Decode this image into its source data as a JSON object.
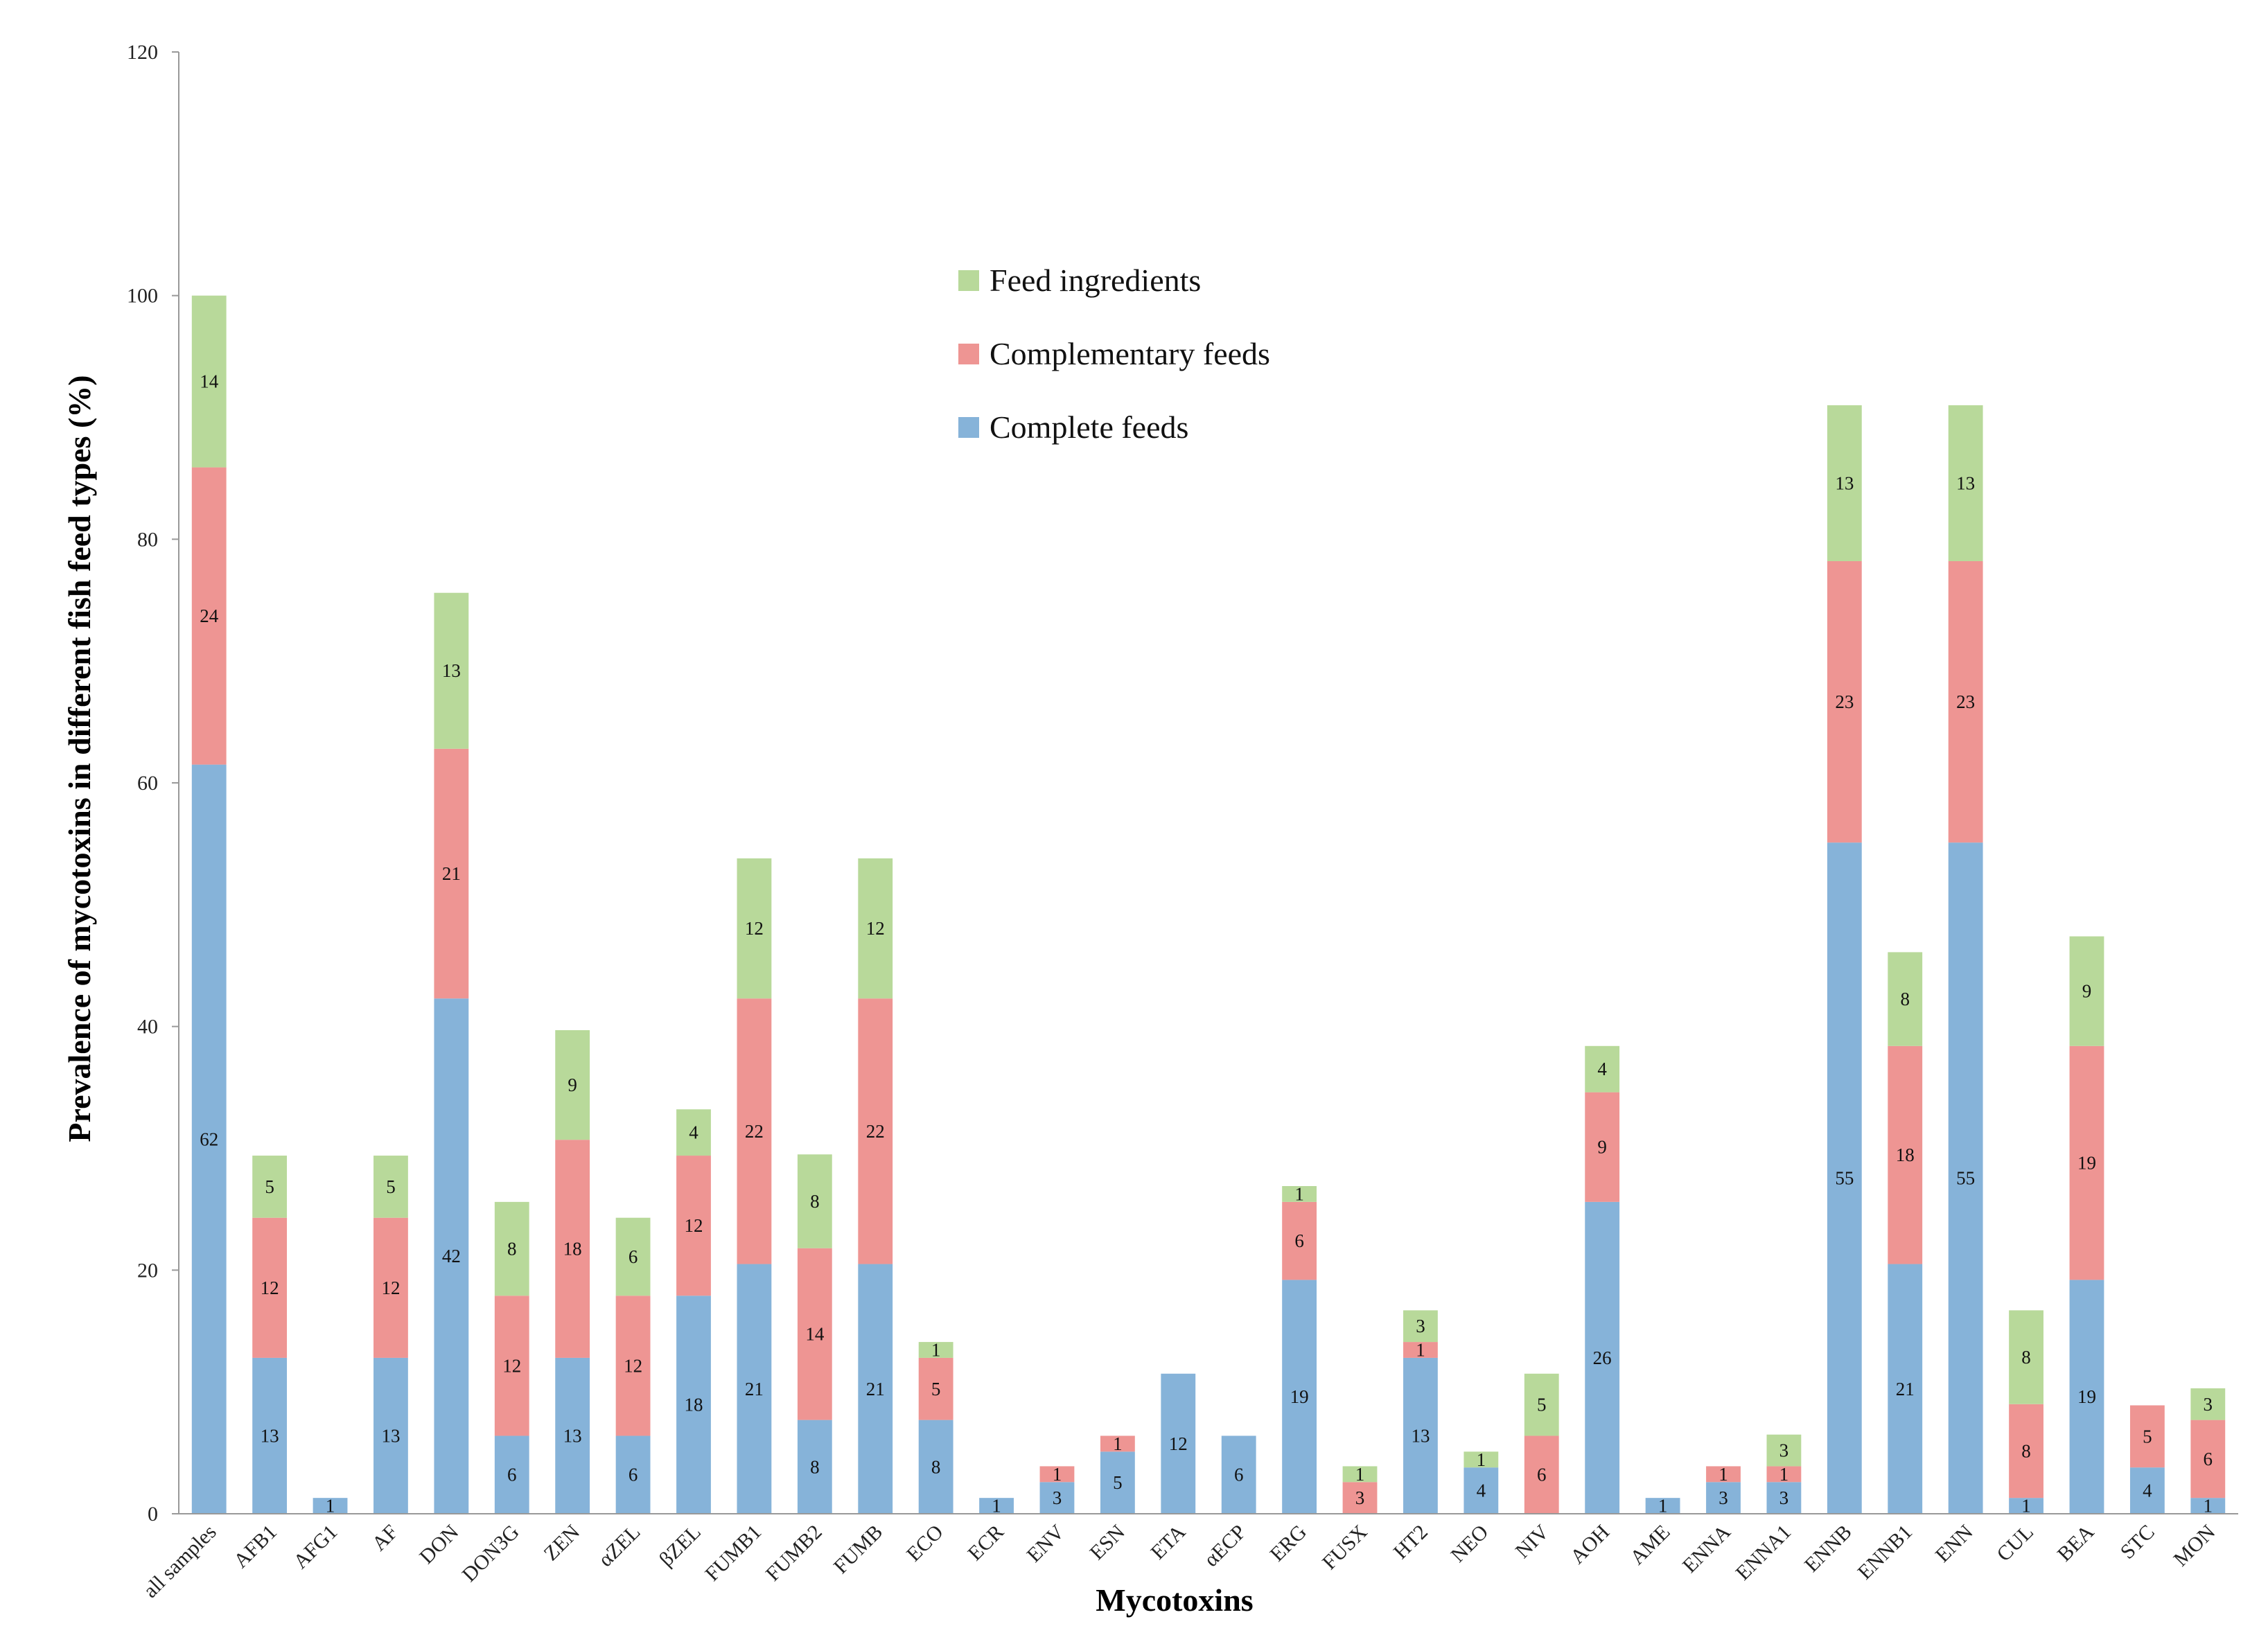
{
  "chart_data": {
    "type": "bar",
    "stacked": true,
    "title": "",
    "xlabel": "Mycotoxins",
    "ylabel": "Prevalence of mycotoxins in different fish feed types (%)",
    "ylim": [
      0,
      120
    ],
    "yticks": [
      "0",
      "20",
      "40",
      "60",
      "80",
      "100",
      "120"
    ],
    "grid": false,
    "legend_position": "top-center",
    "categories": [
      "all samples",
      "AFB1",
      "AFG1",
      "AF",
      "DON",
      "DON3G",
      "ZEN",
      "αZEL",
      "βZEL",
      "FUMB1",
      "FUMB2",
      "FUMB",
      "ECO",
      "ECR",
      "ENV",
      "ESN",
      "ETA",
      "αECP",
      "ERG",
      "FUSX",
      "HT2",
      "NEO",
      "NIV",
      "AOH",
      "AME",
      "ENNA",
      "ENNA1",
      "ENNB",
      "ENNB1",
      "ENN",
      "CUL",
      "BEA",
      "STC",
      "MON"
    ],
    "series": [
      {
        "name": "Complete feeds",
        "color": "#86b3d9",
        "values": [
          61.5,
          12.8,
          1.3,
          12.8,
          42.3,
          6.4,
          12.8,
          6.4,
          17.9,
          20.5,
          7.7,
          20.5,
          7.7,
          1.3,
          2.6,
          5.1,
          11.5,
          6.4,
          19.2,
          0,
          12.8,
          3.8,
          0,
          25.6,
          1.3,
          2.6,
          2.6,
          55.1,
          20.5,
          55.1,
          1.3,
          19.2,
          3.8,
          1.3
        ],
        "labels": [
          "62",
          "13",
          "1",
          "13",
          "42",
          "6",
          "13",
          "6",
          "18",
          "21",
          "8",
          "21",
          "8",
          "1",
          "3",
          "5",
          "12",
          "6",
          "19",
          "",
          "13",
          "4",
          "",
          "26",
          "1",
          "3",
          "3",
          "55",
          "21",
          "55",
          "1",
          "19",
          "4",
          "1"
        ]
      },
      {
        "name": "Complementary feeds",
        "color": "#ee9593",
        "values": [
          24.4,
          11.5,
          0,
          11.5,
          20.5,
          11.5,
          17.9,
          11.5,
          11.5,
          21.8,
          14.1,
          21.8,
          5.1,
          0,
          1.3,
          1.3,
          0,
          0,
          6.4,
          2.6,
          1.3,
          0,
          6.4,
          9.0,
          0,
          1.3,
          1.3,
          23.1,
          17.9,
          23.1,
          7.7,
          19.2,
          5.1,
          6.4
        ],
        "labels": [
          "24",
          "12",
          "",
          "12",
          "21",
          "12",
          "18",
          "12",
          "12",
          "22",
          "14",
          "22",
          "5",
          "",
          "1",
          "1",
          "",
          "",
          "6",
          "3",
          "1",
          "",
          "6",
          "9",
          "",
          "1",
          "1",
          "23",
          "18",
          "23",
          "8",
          "19",
          "5",
          "6"
        ]
      },
      {
        "name": "Feed ingredients",
        "color": "#b8d99a",
        "values": [
          14.1,
          5.1,
          0,
          5.1,
          12.8,
          7.7,
          9.0,
          6.4,
          3.8,
          11.5,
          7.7,
          11.5,
          1.3,
          0,
          0,
          0,
          0,
          0,
          1.3,
          1.3,
          2.6,
          1.3,
          5.1,
          3.8,
          0,
          0,
          2.6,
          12.8,
          7.7,
          12.8,
          7.7,
          9.0,
          0,
          2.6
        ],
        "labels": [
          "14",
          "5",
          "",
          "5",
          "13",
          "8",
          "9",
          "6",
          "4",
          "12",
          "8",
          "12",
          "1",
          "",
          "",
          "",
          "",
          "",
          "1",
          "1",
          "3",
          "1",
          "5",
          "4",
          "",
          "",
          "3",
          "13",
          "8",
          "13",
          "8",
          "9",
          "",
          "3"
        ]
      }
    ]
  }
}
